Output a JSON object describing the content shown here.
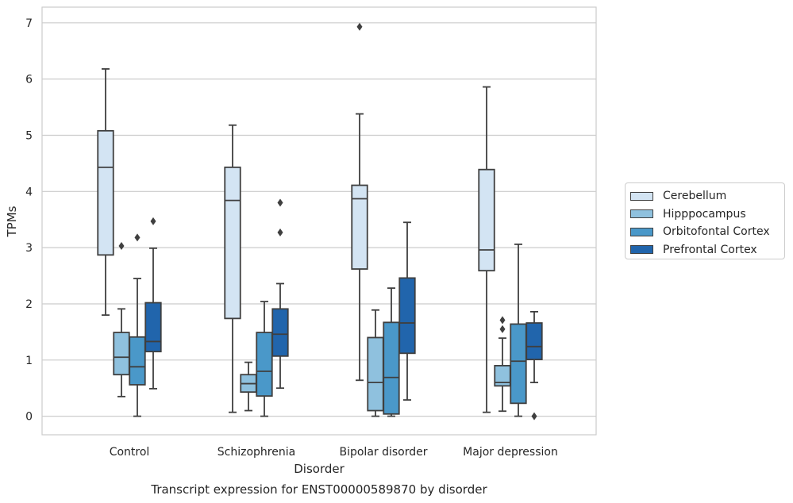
{
  "chart_data": {
    "type": "box",
    "title": "Transcript expression for ENST00000589870 by disorder",
    "xlabel": "Disorder",
    "ylabel": "TPMs",
    "ylim": [
      -0.33,
      7.28
    ],
    "yticks": [
      0,
      1,
      2,
      3,
      4,
      5,
      6,
      7
    ],
    "grid": "horizontal",
    "legend_position": "right",
    "categories": [
      "Control",
      "Schizophrenia",
      "Bipolar disorder",
      "Major depression"
    ],
    "series": [
      {
        "name": "Cerebellum",
        "color": "#d3e4f3",
        "boxes": [
          {
            "whislo": 1.8,
            "q1": 2.87,
            "med": 4.43,
            "q3": 5.08,
            "whishi": 6.18,
            "fliers": []
          },
          {
            "whislo": 0.07,
            "q1": 1.74,
            "med": 3.84,
            "q3": 4.43,
            "whishi": 5.18,
            "fliers": []
          },
          {
            "whislo": 0.64,
            "q1": 2.62,
            "med": 3.87,
            "q3": 4.11,
            "whishi": 5.38,
            "fliers": [
              6.93
            ]
          },
          {
            "whislo": 0.07,
            "q1": 2.59,
            "med": 2.96,
            "q3": 4.39,
            "whishi": 5.86,
            "fliers": []
          }
        ]
      },
      {
        "name": "Hipppocampus",
        "color": "#8fc1de",
        "boxes": [
          {
            "whislo": 0.35,
            "q1": 0.74,
            "med": 1.05,
            "q3": 1.49,
            "whishi": 1.91,
            "fliers": [
              3.03
            ]
          },
          {
            "whislo": 0.1,
            "q1": 0.43,
            "med": 0.58,
            "q3": 0.74,
            "whishi": 0.96,
            "fliers": []
          },
          {
            "whislo": 0.0,
            "q1": 0.1,
            "med": 0.6,
            "q3": 1.4,
            "whishi": 1.89,
            "fliers": []
          },
          {
            "whislo": 0.09,
            "q1": 0.54,
            "med": 0.6,
            "q3": 0.9,
            "whishi": 1.39,
            "fliers": [
              1.55,
              1.71
            ]
          }
        ]
      },
      {
        "name": "Orbitofontal Cortex",
        "color": "#4a98c9",
        "boxes": [
          {
            "whislo": 0.0,
            "q1": 0.56,
            "med": 0.88,
            "q3": 1.41,
            "whishi": 2.45,
            "fliers": [
              3.18
            ]
          },
          {
            "whislo": 0.0,
            "q1": 0.36,
            "med": 0.8,
            "q3": 1.49,
            "whishi": 2.04,
            "fliers": []
          },
          {
            "whislo": 0.0,
            "q1": 0.04,
            "med": 0.69,
            "q3": 1.67,
            "whishi": 2.28,
            "fliers": []
          },
          {
            "whislo": 0.0,
            "q1": 0.23,
            "med": 0.98,
            "q3": 1.64,
            "whishi": 3.06,
            "fliers": []
          }
        ]
      },
      {
        "name": "Prefrontal Cortex",
        "color": "#2165ac",
        "boxes": [
          {
            "whislo": 0.49,
            "q1": 1.15,
            "med": 1.33,
            "q3": 2.02,
            "whishi": 2.99,
            "fliers": [
              3.47
            ]
          },
          {
            "whislo": 0.5,
            "q1": 1.07,
            "med": 1.46,
            "q3": 1.91,
            "whishi": 2.36,
            "fliers": [
              3.27,
              3.8
            ]
          },
          {
            "whislo": 0.29,
            "q1": 1.12,
            "med": 1.66,
            "q3": 2.46,
            "whishi": 3.45,
            "fliers": []
          },
          {
            "whislo": 0.6,
            "q1": 1.01,
            "med": 1.24,
            "q3": 1.66,
            "whishi": 1.86,
            "fliers": [
              0.0
            ]
          }
        ]
      }
    ]
  }
}
